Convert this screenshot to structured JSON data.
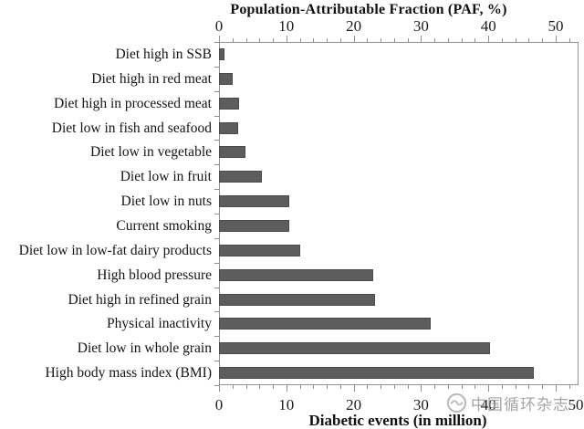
{
  "chart_data": {
    "type": "bar",
    "orientation": "horizontal",
    "title_top": "Population-Attributable Fraction (PAF, %)",
    "title_bottom": "Diabetic events (in million)",
    "categories": [
      "Diet high in SSB",
      "Diet high in red meat",
      "Diet high in processed meat",
      "Diet low in fish and seafood",
      "Diet low in vegetable",
      "Diet low in fruit",
      "Diet low in nuts",
      "Current smoking",
      "Diet low in low-fat dairy products",
      "High blood pressure",
      "Diet high in refined grain",
      "Physical inactivity",
      "Diet low in whole grain",
      "High body mass index (BMI)"
    ],
    "values": [
      0.8,
      2.0,
      3.0,
      2.8,
      3.9,
      6.4,
      10.5,
      10.4,
      12.0,
      22.9,
      23.2,
      31.5,
      40.2,
      46.7
    ],
    "top_axis": {
      "label": "Population-Attributable Fraction (PAF, %)",
      "ticks": [
        0,
        10,
        20,
        30,
        40,
        50
      ]
    },
    "bottom_axis": {
      "label": "Diabetic events (in million)",
      "ticks": [
        0,
        10,
        20,
        30,
        40,
        50
      ]
    },
    "axis_range": [
      0,
      53.4
    ],
    "minor_tick_step": 2,
    "grid": false,
    "legend": "none",
    "bar_color": "#5d5d5d",
    "axis_color": "#8f8f8f"
  },
  "watermark": {
    "logo": "chinese-circulation-journal-logo",
    "text": "中国循环杂志"
  }
}
